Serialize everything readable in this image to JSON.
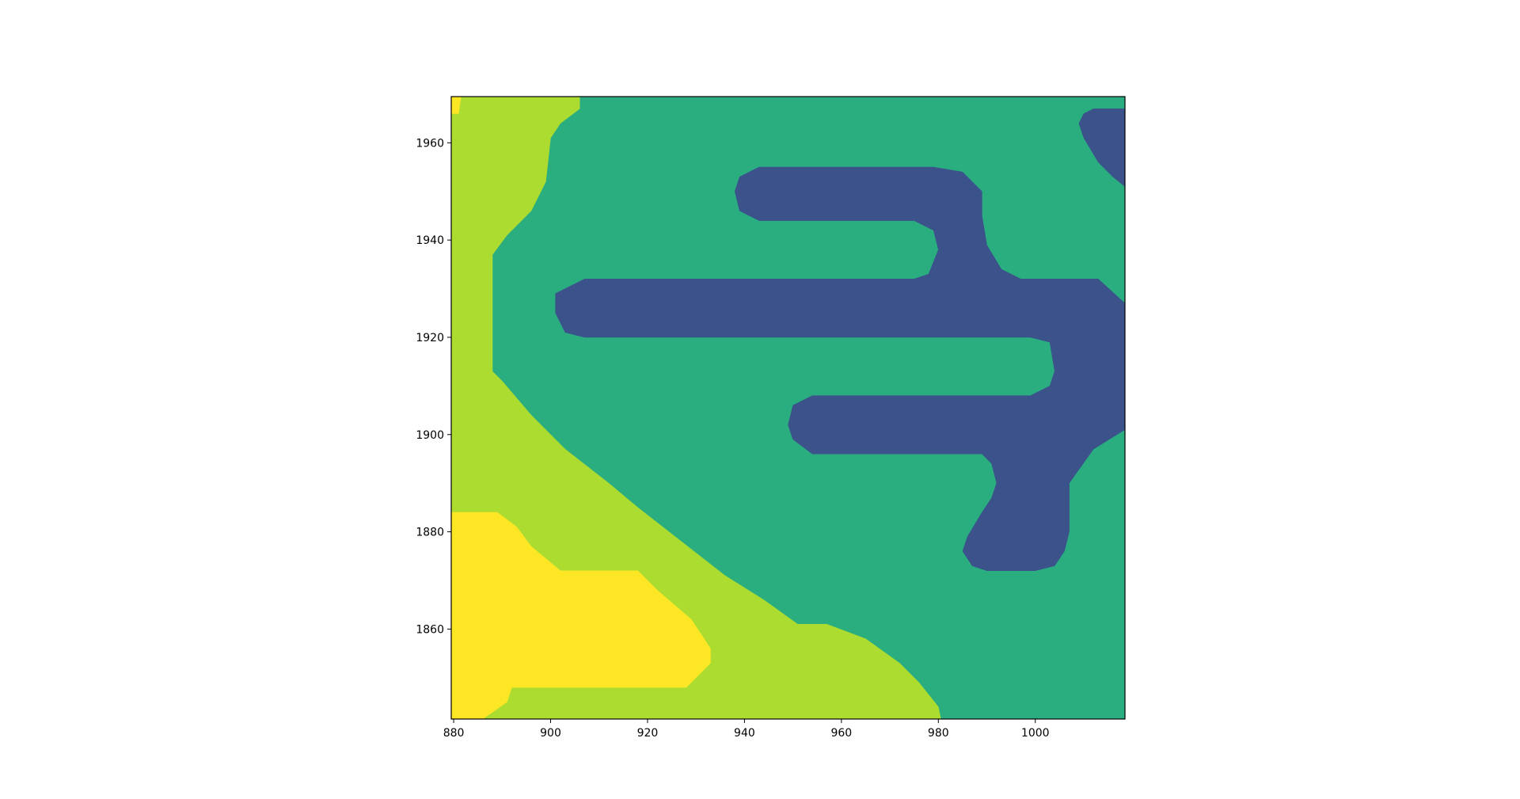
{
  "chart_data": {
    "type": "heatmap",
    "title": "",
    "xlabel": "",
    "ylabel": "",
    "xlim": [
      879.5,
      1018.5
    ],
    "ylim": [
      1969.5,
      1841.5
    ],
    "grid": false,
    "legend": "none",
    "x_ticks": [
      880,
      900,
      920,
      940,
      960,
      980,
      1000
    ],
    "y_ticks": [
      1860,
      1880,
      1900,
      1920,
      1940,
      1960
    ],
    "x_tick_labels": [
      "880",
      "900",
      "920",
      "940",
      "960",
      "980",
      "1000"
    ],
    "y_tick_labels": [
      "1860",
      "1880",
      "1900",
      "1920",
      "1940",
      "1960"
    ],
    "levels": [
      {
        "value": 0,
        "color": "#3b528b"
      },
      {
        "value": 1,
        "color": "#2aae80"
      },
      {
        "value": 2,
        "color": "#addc30"
      },
      {
        "value": 3,
        "color": "#fde725"
      }
    ],
    "background_level": 1,
    "regions": [
      {
        "level": 2,
        "points": [
          [
            879.5,
            1841.5
          ],
          [
            980.5,
            1841.5
          ],
          [
            980,
            1844
          ],
          [
            976,
            1849
          ],
          [
            972,
            1853
          ],
          [
            965,
            1858
          ],
          [
            957,
            1861
          ],
          [
            951,
            1861
          ],
          [
            944,
            1866
          ],
          [
            936,
            1871
          ],
          [
            927,
            1878
          ],
          [
            918,
            1885
          ],
          [
            912,
            1890
          ],
          [
            903,
            1897
          ],
          [
            896,
            1904
          ],
          [
            890,
            1911
          ],
          [
            888,
            1913
          ],
          [
            888,
            1937
          ],
          [
            891,
            1941
          ],
          [
            896,
            1946
          ],
          [
            899,
            1952
          ],
          [
            900,
            1961
          ],
          [
            902,
            1964
          ],
          [
            906,
            1967
          ],
          [
            906,
            1969.5
          ],
          [
            879.5,
            1969.5
          ]
        ]
      },
      {
        "level": 3,
        "points": [
          [
            879.5,
            1841.5
          ],
          [
            886,
            1841.5
          ],
          [
            891,
            1845
          ],
          [
            892,
            1848
          ],
          [
            928,
            1848
          ],
          [
            933,
            1853
          ],
          [
            933,
            1856
          ],
          [
            929,
            1862
          ],
          [
            922,
            1868
          ],
          [
            918,
            1872
          ],
          [
            902,
            1872
          ],
          [
            896,
            1877
          ],
          [
            893,
            1881
          ],
          [
            889,
            1884
          ],
          [
            879.5,
            1884
          ]
        ]
      },
      {
        "level": 3,
        "points": [
          [
            879.5,
            1966
          ],
          [
            881,
            1966
          ],
          [
            881.5,
            1969.5
          ],
          [
            879.5,
            1969.5
          ]
        ]
      },
      {
        "level": 0,
        "points": [
          [
            986,
            1879
          ],
          [
            985,
            1876
          ],
          [
            987,
            1873
          ],
          [
            990,
            1872
          ],
          [
            1000,
            1872
          ],
          [
            1004,
            1873
          ],
          [
            1006,
            1876
          ],
          [
            1007,
            1880
          ],
          [
            1007,
            1890
          ],
          [
            1012,
            1897
          ],
          [
            1018.5,
            1901
          ],
          [
            1018.5,
            1927
          ],
          [
            1013,
            1932
          ],
          [
            997,
            1932
          ],
          [
            993,
            1934
          ],
          [
            990,
            1939
          ],
          [
            989,
            1945
          ],
          [
            989,
            1950
          ],
          [
            985,
            1954
          ],
          [
            979,
            1955
          ],
          [
            943,
            1955
          ],
          [
            939,
            1953
          ],
          [
            938,
            1950
          ],
          [
            939,
            1946
          ],
          [
            943,
            1944
          ],
          [
            975,
            1944
          ],
          [
            979,
            1942
          ],
          [
            980,
            1938
          ],
          [
            978,
            1933
          ],
          [
            975,
            1932
          ],
          [
            907,
            1932
          ],
          [
            901,
            1929
          ],
          [
            901,
            1925
          ],
          [
            903,
            1921
          ],
          [
            907,
            1920
          ],
          [
            999,
            1920
          ],
          [
            1003,
            1919
          ],
          [
            1004,
            1913
          ],
          [
            1003,
            1910
          ],
          [
            999,
            1908
          ],
          [
            954,
            1908
          ],
          [
            950,
            1906
          ],
          [
            949,
            1902
          ],
          [
            950,
            1899
          ],
          [
            954,
            1896
          ],
          [
            989,
            1896
          ],
          [
            991,
            1894
          ],
          [
            992,
            1890
          ],
          [
            991,
            1887
          ],
          [
            989,
            1884
          ]
        ]
      },
      {
        "level": 0,
        "points": [
          [
            1018.5,
            1951
          ],
          [
            1016,
            1953
          ],
          [
            1013,
            1956
          ],
          [
            1010,
            1961
          ],
          [
            1009,
            1964
          ],
          [
            1010,
            1966
          ],
          [
            1012,
            1967
          ],
          [
            1018.5,
            1967
          ]
        ]
      }
    ]
  }
}
